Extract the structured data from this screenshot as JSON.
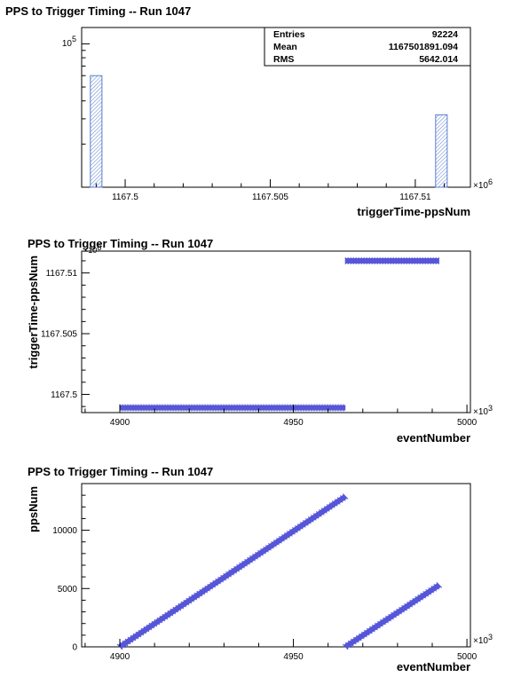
{
  "chart_data": [
    {
      "type": "bar",
      "title": "PPS to Trigger Timing -- Run 1047",
      "xlabel": "triggerTime-ppsNum",
      "x_multiplier": "×10",
      "x_multiplier_exp": "6",
      "xlim": [
        1167.4985,
        1167.5119
      ],
      "x_ticks": [
        1167.5,
        1167.505,
        1167.51
      ],
      "x_tick_labels": [
        "1167.5",
        "1167.505",
        "1167.51"
      ],
      "y_scale": "log",
      "y_tick_labels": [
        {
          "base": "10",
          "exp": "5"
        }
      ],
      "bars": [
        {
          "x0": 1167.4988,
          "x1": 1167.4992,
          "value": 60000
        },
        {
          "x0": 1167.5107,
          "x1": 1167.5111,
          "value": 32000
        }
      ],
      "stats": {
        "rows": [
          {
            "label": "Entries",
            "value": "92224"
          },
          {
            "label": "Mean",
            "value": "1167501891.094"
          },
          {
            "label": "RMS",
            "value": "5642.014"
          }
        ]
      },
      "colors": {
        "bar": "#5b7fd0"
      }
    },
    {
      "type": "scatter",
      "title": "PPS to Trigger Timing -- Run 1047",
      "xlabel": "eventNumber",
      "ylabel": "triggerTime-ppsNum",
      "x_multiplier": "×10",
      "x_multiplier_exp": "3",
      "y_multiplier": "×10",
      "y_multiplier_exp": "6",
      "xlim": [
        4889,
        5001
      ],
      "ylim": [
        1167.4985,
        1167.5118
      ],
      "x_ticks": [
        4900,
        4950,
        5000
      ],
      "x_tick_labels": [
        "4900",
        "4950",
        "5000"
      ],
      "y_ticks": [
        1167.5,
        1167.505,
        1167.51
      ],
      "y_tick_labels": [
        "1167.5",
        "1167.505",
        "1167.51"
      ],
      "segments": [
        {
          "x0": 4900,
          "x1": 4965,
          "y": 1167.4989
        },
        {
          "x0": 4965,
          "x1": 4992,
          "y": 1167.511
        }
      ],
      "colors": {
        "points": "#5656d8"
      }
    },
    {
      "type": "scatter",
      "title": "PPS to Trigger Timing -- Run 1047",
      "xlabel": "eventNumber",
      "ylabel": "ppsNum",
      "x_multiplier": "×10",
      "x_multiplier_exp": "3",
      "xlim": [
        4889,
        5001
      ],
      "ylim": [
        0,
        14000
      ],
      "x_ticks": [
        4900,
        4950,
        5000
      ],
      "x_tick_labels": [
        "4900",
        "4950",
        "5000"
      ],
      "y_ticks": [
        0,
        5000,
        10000
      ],
      "y_tick_labels": [
        "0",
        "5000",
        "10000"
      ],
      "segments": [
        {
          "x0": 4900,
          "y0": 0,
          "x1": 4965,
          "y1": 12900
        },
        {
          "x0": 4965,
          "y0": 0,
          "x1": 4992,
          "y1": 5300
        }
      ],
      "colors": {
        "points": "#5656d8"
      }
    }
  ]
}
